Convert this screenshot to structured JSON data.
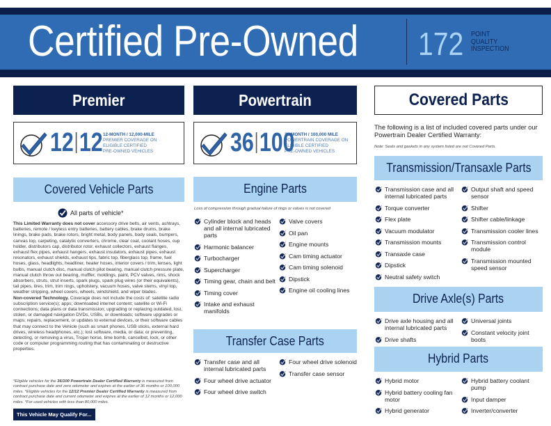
{
  "header": {
    "title": "Certified Pre-Owned",
    "points": "172",
    "points_label": [
      "POINT",
      "QUALITY",
      "INSPECTION"
    ]
  },
  "premier": {
    "title": "Premier",
    "badge_left": "12",
    "badge_right": "12",
    "badge_lines": [
      "12-MONTH / 12,000-MILE",
      "PREMIER COVERAGE ON",
      "ELIGIBLE CERTIFIED",
      "PRE-OWNED VEHICLES"
    ],
    "section": "Covered Vehicle Parts",
    "all_parts": "All parts of vehicle*",
    "exclusions_lead": "This Limited Warranty does not cover",
    "exclusions": " accessory drive belts, air vents, ashtrays, batteries, remote / keyless entry batteries, battery cables, brake drums, brake linings, brake pads, brake rotors, bright metal, body panels, body seals, bumpers, canvas top, carpeting, catalytic converters, chrome, clear coat, coolant hoses, cup holder, distributors cap, distributor rotor, exhaust collectors, exhaust flanges, exhaust flex pipes, exhaust hangers, exhaust insulators, exhaust pipes, exhaust resonators, exhaust shields, exhaust tips, fabric top, fiberglass top, frame, fuel hoses, glass, headlights, headliner, heater hoses, interior covers / trim, lenses, light bulbs, manual clutch disc, manual clutch pilot bearing, manual clutch pressure plate, manual clutch throw out bearing, muffler, moldings, paint, PCV valves, rims, shock absorbers, struts, strut inserts, spark plugs, spark plug wires (or their equivalents), tail pipes, tires, trim, trim rings, upholstery, vacuum hoses, valve stems, vinyl top, weather stripping, wheel covers, wheels, windshield, and wiper blades.",
    "tech_lead": "Non-covered Technology.",
    "tech": " Coverage does not include the costs of: satellite radio subscription service(s); apps; downloaded internet content; satellite or Wi-Fi connections; data plans or data transmission; upgrading or replacing outdated, lost, stolen, or damaged navigation DVDs, USBs, or downloads; software upgrades or maps; repairs, replacement, or updates to external devices, or their software cables that may connect to the Vehicle (such as smart phones, USB sticks, external hard drives, wireless headphones, etc.); lost software, media, or data; or preventing, detecting, or removing a virus, Trojan horse, time bomb, cancelbot, lock, or other code or computer programming routing that has contaminating or destructive properties.",
    "footnote_1a": "*Eligible vehicles for the ",
    "footnote_1b": "36/100 Powertrain Dealer Certified Warranty",
    "footnote_1c": " is measured from contract purchase date and zero odometer and expires at the earlier of 36 months or 100,000 miles. *Eligible vehicles for the ",
    "footnote_1d": "12/12 Premier Dealer Certified Warranty",
    "footnote_1e": " is measured from contract purchase date and current odometer and expires at the earlier of 12 months or 12,000 miles. *For used vehicles with less than 80,000 miles.",
    "qualify_button": "This Vehicle May Qualify For..."
  },
  "powertrain": {
    "title": "Powertrain",
    "badge_left": "36",
    "badge_right": "100",
    "badge_lines": [
      "36-MONTH / 100,000 MILE",
      "POWERTRAIN COVERAGE ON",
      "ELIGIBLE CERTIFIED",
      "PRE-OWNED VEHICLES"
    ],
    "engine_title": "Engine Parts",
    "engine_note": "Loss of compression through gradual failure of rings or valves is not covered",
    "engine_left": [
      "Cylinder block and heads and all internal lubricated parts",
      "Harmonic balancer",
      "Turbocharger",
      "Supercharger",
      "Timing gear, chain and belt",
      "Timing cover",
      "Intake and exhaust manifolds"
    ],
    "engine_right": [
      "Valve covers",
      "Oil pan",
      "Engine mounts",
      "Cam timing actuator",
      "Cam timing solenoid",
      "Dipstick",
      "Engine oil cooling lines"
    ],
    "transfer_title": "Transfer Case Parts",
    "transfer_left": [
      "Transfer case and all internal lubricated parts",
      "Four wheel drive actuator",
      "Four wheel drive switch"
    ],
    "transfer_right": [
      "Four wheel drive solenoid",
      "Transfer case sensor"
    ]
  },
  "covered": {
    "title": "Covered Parts",
    "intro": "The following is a list of included covered parts under our Powertrain Dealer Certified Warranty:",
    "note": "Note: Seals and gaskets in any system listed are not Covered Parts.",
    "trans_title": "Transmission/Transaxle Parts",
    "trans_left": [
      "Transmission case and all internal lubricated parts",
      "Torque converter",
      "Flex plate",
      "Vacuum modulator",
      "Transmission mounts",
      "Transaxle case",
      "Dipstick",
      "Neutral safety switch"
    ],
    "trans_right": [
      "Output shaft and speed sensor",
      "Shifter",
      "Shifter cable/linkage",
      "Transmission cooler lines",
      "Transmission control module",
      "Transmission mounted speed sensor"
    ],
    "axle_title": "Drive Axle(s) Parts",
    "axle_left": [
      "Drive axle housing and all internal lubricated parts",
      "Drive shafts"
    ],
    "axle_right": [
      "Universal joints",
      "Constant velocity joint boots"
    ],
    "hybrid_title": "Hybrid Parts",
    "hybrid_left": [
      "Hybrid motor",
      "Hybrid battery cooling fan motor",
      "Hybrid generator"
    ],
    "hybrid_right": [
      "Hybrid battery coolant pump",
      "Input damper",
      "Inverter/converter"
    ]
  },
  "colors": {
    "navy": "#0d2150",
    "blue": "#2f6cb4",
    "light_blue": "#a9d3f1"
  }
}
